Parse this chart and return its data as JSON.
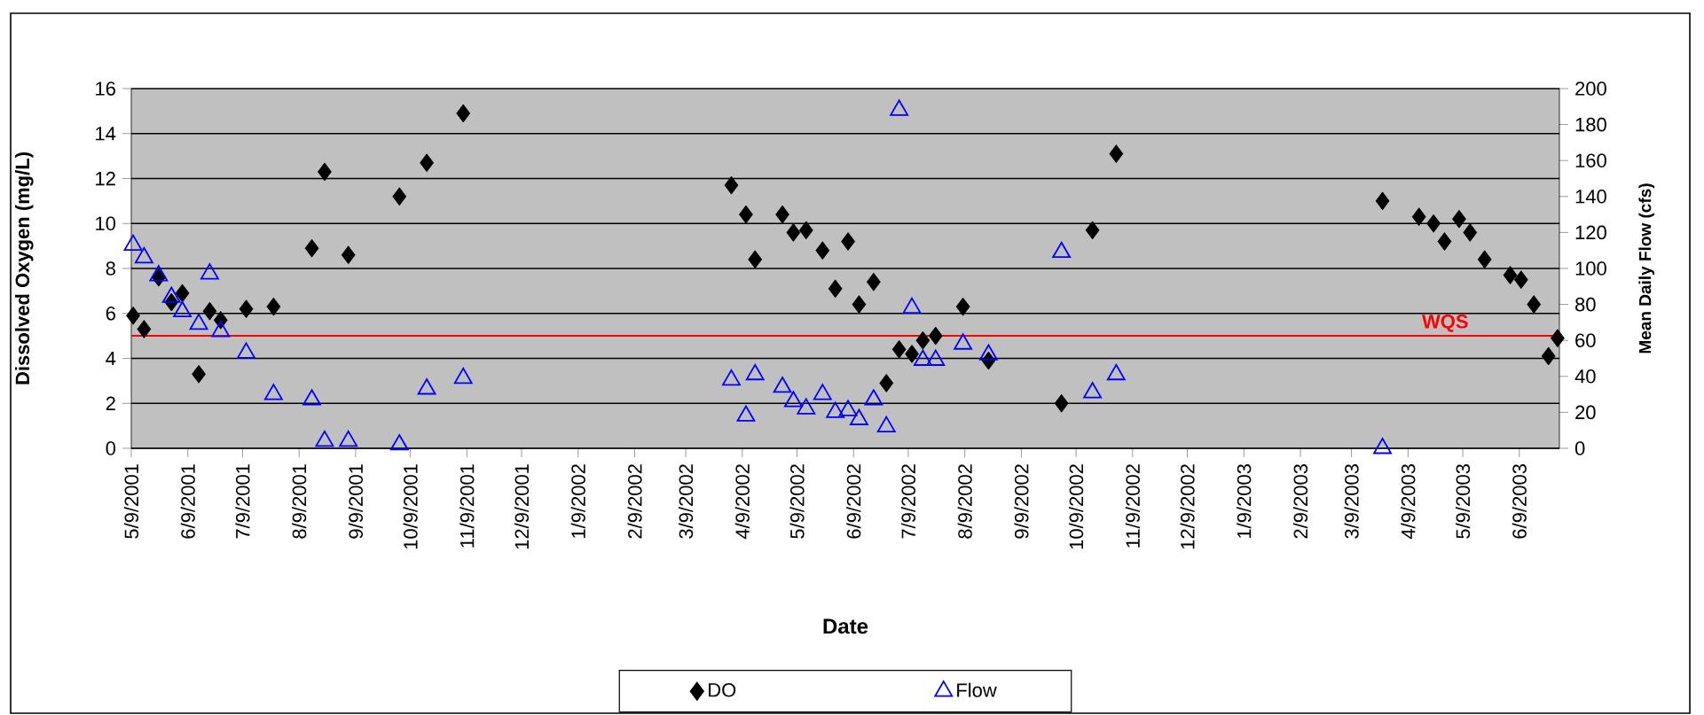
{
  "chart_data": {
    "type": "scatter",
    "xlabel": "Date",
    "ylabel": "Dissolved Oxygen (mg/L)",
    "y2label": "Mean Daily Flow (cfs)",
    "xlim": [
      "2001-05-09",
      "2003-07-01"
    ],
    "xticks": [
      {
        "value": "2001-05-09",
        "label": "5/9/2001"
      },
      {
        "value": "2001-06-09",
        "label": "6/9/2001"
      },
      {
        "value": "2001-07-09",
        "label": "7/9/2001"
      },
      {
        "value": "2001-08-09",
        "label": "8/9/2001"
      },
      {
        "value": "2001-09-09",
        "label": "9/9/2001"
      },
      {
        "value": "2001-10-09",
        "label": "10/9/2001"
      },
      {
        "value": "2001-11-09",
        "label": "11/9/2001"
      },
      {
        "value": "2001-12-09",
        "label": "12/9/2001"
      },
      {
        "value": "2002-01-09",
        "label": "1/9/2002"
      },
      {
        "value": "2002-02-09",
        "label": "2/9/2002"
      },
      {
        "value": "2002-03-09",
        "label": "3/9/2002"
      },
      {
        "value": "2002-04-09",
        "label": "4/9/2002"
      },
      {
        "value": "2002-05-09",
        "label": "5/9/2002"
      },
      {
        "value": "2002-06-09",
        "label": "6/9/2002"
      },
      {
        "value": "2002-07-09",
        "label": "7/9/2002"
      },
      {
        "value": "2002-08-09",
        "label": "8/9/2002"
      },
      {
        "value": "2002-09-09",
        "label": "9/9/2002"
      },
      {
        "value": "2002-10-09",
        "label": "10/9/2002"
      },
      {
        "value": "2002-11-09",
        "label": "11/9/2002"
      },
      {
        "value": "2002-12-09",
        "label": "12/9/2002"
      },
      {
        "value": "2003-01-09",
        "label": "1/9/2003"
      },
      {
        "value": "2003-02-09",
        "label": "2/9/2003"
      },
      {
        "value": "2003-03-09",
        "label": "3/9/2003"
      },
      {
        "value": "2003-04-09",
        "label": "4/9/2003"
      },
      {
        "value": "2003-05-09",
        "label": "5/9/2003"
      },
      {
        "value": "2003-06-09",
        "label": "6/9/2003"
      }
    ],
    "ylim": [
      0,
      16
    ],
    "yticks": [
      0,
      2,
      4,
      6,
      8,
      10,
      12,
      14,
      16
    ],
    "y2lim": [
      0,
      200
    ],
    "y2ticks": [
      0,
      20,
      40,
      60,
      80,
      100,
      120,
      140,
      160,
      180,
      200
    ],
    "grid": "y",
    "legend": "bottom",
    "series": [
      {
        "name": "DO",
        "color": "#000000",
        "marker": "diamond",
        "x": [
          "2001-05-10",
          "2001-05-16",
          "2001-05-24",
          "2001-05-31",
          "2001-06-06",
          "2001-06-15",
          "2001-06-21",
          "2001-06-27",
          "2001-07-11",
          "2001-07-26",
          "2001-08-16",
          "2001-08-23",
          "2001-09-05",
          "2001-10-03",
          "2001-10-18",
          "2001-11-07",
          "2002-04-03",
          "2002-04-11",
          "2002-04-16",
          "2002-05-01",
          "2002-05-07",
          "2002-05-14",
          "2002-05-23",
          "2002-05-30",
          "2002-06-06",
          "2002-06-12",
          "2002-06-20",
          "2002-06-27",
          "2002-07-04",
          "2002-07-11",
          "2002-07-17",
          "2002-07-24",
          "2002-08-08",
          "2002-08-22",
          "2002-10-01",
          "2002-10-18",
          "2002-10-31",
          "2003-03-26",
          "2003-04-15",
          "2003-04-23",
          "2003-04-29",
          "2003-05-07",
          "2003-05-13",
          "2003-05-21",
          "2003-06-04",
          "2003-06-10",
          "2003-06-17",
          "2003-06-25",
          "2003-06-30"
        ],
        "values": [
          5.9,
          5.3,
          7.6,
          6.5,
          6.9,
          3.3,
          6.1,
          5.7,
          6.2,
          6.3,
          8.9,
          12.3,
          8.6,
          11.2,
          12.7,
          14.9,
          11.7,
          10.4,
          8.4,
          10.4,
          9.6,
          9.7,
          8.8,
          7.1,
          9.2,
          6.4,
          7.4,
          2.9,
          4.4,
          4.2,
          4.8,
          5.0,
          6.3,
          3.9,
          2.0,
          9.7,
          13.1,
          11.0,
          10.3,
          10.0,
          9.2,
          10.2,
          9.6,
          8.4,
          7.7,
          7.5,
          6.4,
          4.1,
          4.9
        ]
      },
      {
        "name": "Flow",
        "color": "#0000ff",
        "marker": "triangle",
        "axis": "y2",
        "x": [
          "2001-05-10",
          "2001-05-16",
          "2001-05-24",
          "2001-05-31",
          "2001-06-06",
          "2001-06-15",
          "2001-06-21",
          "2001-06-27",
          "2001-07-11",
          "2001-07-26",
          "2001-08-16",
          "2001-08-23",
          "2001-09-05",
          "2001-10-03",
          "2001-10-18",
          "2001-11-07",
          "2002-04-03",
          "2002-04-11",
          "2002-04-16",
          "2002-05-01",
          "2002-05-07",
          "2002-05-14",
          "2002-05-23",
          "2002-05-30",
          "2002-06-06",
          "2002-06-12",
          "2002-06-20",
          "2002-06-27",
          "2002-07-04",
          "2002-07-11",
          "2002-07-17",
          "2002-07-24",
          "2002-08-08",
          "2002-08-22",
          "2002-10-01",
          "2002-10-18",
          "2002-10-31",
          "2003-03-26"
        ],
        "values": [
          113,
          106,
          96,
          84,
          76,
          69,
          97,
          65,
          53,
          30,
          27,
          4,
          4,
          2,
          33,
          39,
          38,
          18,
          41,
          34,
          26,
          22,
          30,
          20,
          21,
          16,
          27,
          12,
          188,
          78,
          49,
          49,
          58,
          52,
          109,
          31,
          41,
          0
        ]
      }
    ],
    "ref_lines": [
      {
        "axis": "y",
        "value": 5,
        "label": "WQS",
        "color": "#ff0000"
      }
    ]
  }
}
